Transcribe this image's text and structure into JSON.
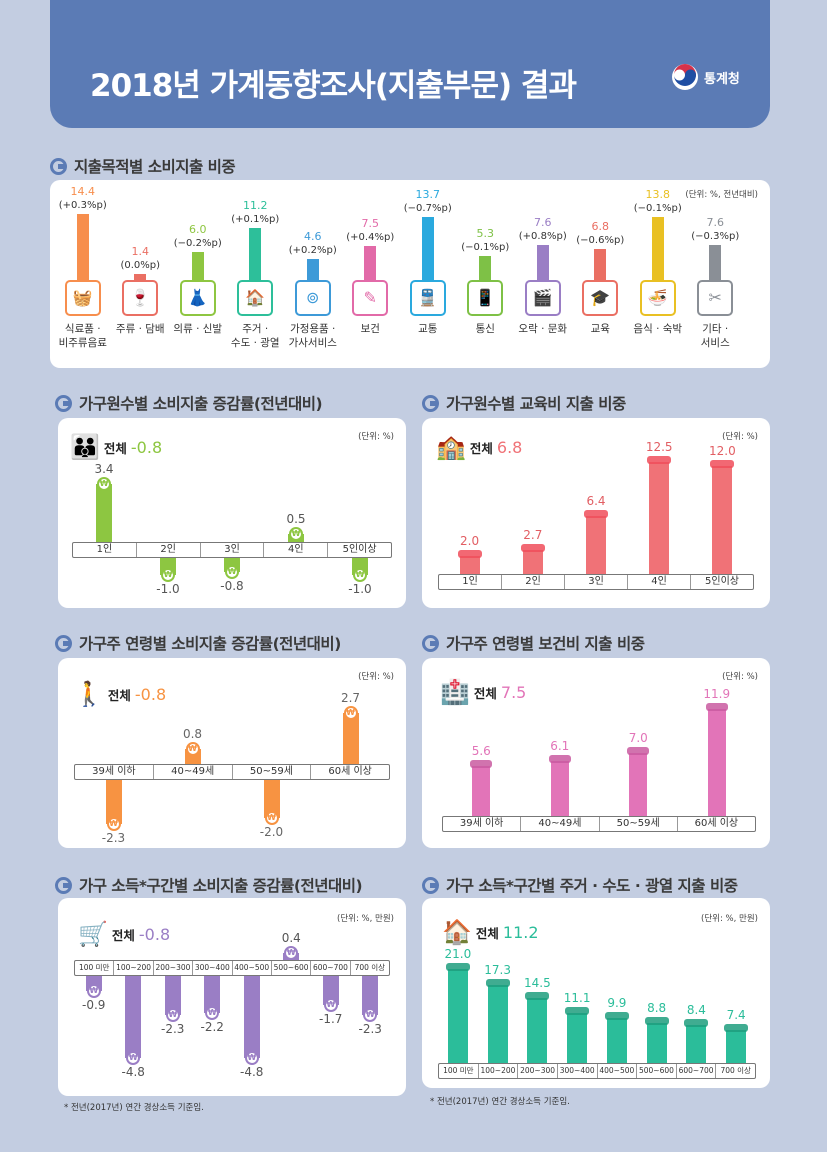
{
  "header": {
    "title": "2018년 가계동향조사(지출부문) 결과",
    "agency": "통계청"
  },
  "colors": {
    "banner": "#5b7bb5",
    "green": "#8dc641",
    "red": "#f07277",
    "orange": "#f79342",
    "pink": "#e274b8",
    "purple": "#9a7ec5",
    "teal": "#2bbd9a"
  },
  "section1": {
    "title": "지출목적별 소비지출 비중",
    "unit": "(단위: %, 전년대비)",
    "chart_data": {
      "type": "bar",
      "title": "지출목적별 소비지출 비중",
      "categories": [
        {
          "line1": "식료품 ·",
          "line2": "비주류음료",
          "icon": "grocery-basket-icon",
          "glyph": "🧺",
          "color": "#f78e4d"
        },
        {
          "line1": "주류 · 담배",
          "line2": "",
          "icon": "bottle-icon",
          "glyph": "🍷",
          "color": "#ea6f63"
        },
        {
          "line1": "의류 · 신발",
          "line2": "",
          "icon": "dress-icon",
          "glyph": "👗",
          "color": "#8ec641"
        },
        {
          "line1": "주거 ·",
          "line2": "수도 · 광열",
          "icon": "house-icon",
          "glyph": "🏠",
          "color": "#2dbf9a"
        },
        {
          "line1": "가정용품 ·",
          "line2": "가사서비스",
          "icon": "washing-machine-icon",
          "glyph": "⊚",
          "color": "#3d9ad8"
        },
        {
          "line1": "보건",
          "line2": "",
          "icon": "medical-chart-icon",
          "glyph": "✎",
          "color": "#e26aa8"
        },
        {
          "line1": "교통",
          "line2": "",
          "icon": "train-icon",
          "glyph": "🚆",
          "color": "#2aa9de"
        },
        {
          "line1": "통신",
          "line2": "",
          "icon": "phone-icon",
          "glyph": "📱",
          "color": "#7ec146"
        },
        {
          "line1": "오락 · 문화",
          "line2": "",
          "icon": "popcorn-icon",
          "glyph": "🎬",
          "color": "#9a7ec5"
        },
        {
          "line1": "교육",
          "line2": "",
          "icon": "graduation-cap-icon",
          "glyph": "🎓",
          "color": "#ea6f63"
        },
        {
          "line1": "음식 · 숙박",
          "line2": "",
          "icon": "noodle-bowl-icon",
          "glyph": "🍜",
          "color": "#e9c023"
        },
        {
          "line1": "기타 ·",
          "line2": "서비스",
          "icon": "scissors-icon",
          "glyph": "✂",
          "color": "#8a8f96"
        }
      ],
      "values": [
        14.4,
        1.4,
        6.0,
        11.2,
        4.6,
        7.5,
        13.7,
        5.3,
        7.6,
        6.8,
        13.8,
        7.6
      ],
      "value_labels": [
        "14.4",
        "1.4",
        "6.0",
        "11.2",
        "4.6",
        "7.5",
        "13.7",
        "5.3",
        "7.6",
        "6.8",
        "13.8",
        "7.6"
      ],
      "changes": [
        "(+0.3%p)",
        "(0.0%p)",
        "(−0.2%p)",
        "(+0.1%p)",
        "(+0.2%p)",
        "(+0.4%p)",
        "(−0.7%p)",
        "(−0.1%p)",
        "(+0.8%p)",
        "(−0.6%p)",
        "(−0.1%p)",
        "(−0.3%p)"
      ]
    }
  },
  "section2": {
    "title": "가구원수별 소비지출 증감률(전년대비)",
    "unit": "(단위: %)",
    "total_label": "전체",
    "total_value": "-0.8",
    "chart_data": {
      "type": "bar",
      "title": "가구원수별 소비지출 증감률(전년대비)",
      "categories": [
        "1인",
        "2인",
        "3인",
        "4인",
        "5인이상"
      ],
      "values": [
        3.4,
        -1.0,
        -0.8,
        0.5,
        -1.0
      ],
      "value_labels": [
        "3.4",
        "-1.0",
        "-0.8",
        "0.5",
        "-1.0"
      ]
    }
  },
  "section3": {
    "title": "가구원수별 교육비 지출 비중",
    "unit": "(단위: %)",
    "total_label": "전체",
    "total_value": "6.8",
    "chart_data": {
      "type": "bar",
      "title": "가구원수별 교육비 지출 비중",
      "categories": [
        "1인",
        "2인",
        "3인",
        "4인",
        "5인이상"
      ],
      "values": [
        2.0,
        2.7,
        6.4,
        12.5,
        12.0
      ],
      "value_labels": [
        "2.0",
        "2.7",
        "6.4",
        "12.5",
        "12.0"
      ]
    }
  },
  "section4": {
    "title": "가구주 연령별 소비지출 증감률(전년대비)",
    "unit": "(단위: %)",
    "total_label": "전체",
    "total_value": "-0.8",
    "chart_data": {
      "type": "bar",
      "title": "가구주 연령별 소비지출 증감률(전년대비)",
      "categories": [
        "39세 이하",
        "40~49세",
        "50~59세",
        "60세 이상"
      ],
      "values": [
        -2.3,
        0.8,
        -2.0,
        2.7
      ],
      "value_labels": [
        "-2.3",
        "0.8",
        "-2.0",
        "2.7"
      ]
    }
  },
  "section5": {
    "title": "가구주 연령별 보건비 지출 비중",
    "unit": "(단위: %)",
    "total_label": "전체",
    "total_value": "7.5",
    "chart_data": {
      "type": "bar",
      "title": "가구주 연령별 보건비 지출 비중",
      "categories": [
        "39세 이하",
        "40~49세",
        "50~59세",
        "60세 이상"
      ],
      "values": [
        5.6,
        6.1,
        7.0,
        11.9
      ],
      "value_labels": [
        "5.6",
        "6.1",
        "7.0",
        "11.9"
      ]
    }
  },
  "section6": {
    "title": "가구 소득*구간별 소비지출 증감률(전년대비)",
    "unit": "(단위: %, 만원)",
    "total_label": "전체",
    "total_value": "-0.8",
    "note": "* 전년(2017년) 연간 경상소득 기준임.",
    "chart_data": {
      "type": "bar",
      "title": "가구 소득*구간별 소비지출 증감률(전년대비)",
      "categories": [
        "100 미만",
        "100~200",
        "200~300",
        "300~400",
        "400~500",
        "500~600",
        "600~700",
        "700 이상"
      ],
      "values": [
        -0.9,
        -4.8,
        -2.3,
        -2.2,
        -4.8,
        0.4,
        -1.7,
        -2.3
      ],
      "value_labels": [
        "-0.9",
        "-4.8",
        "-2.3",
        "-2.2",
        "-4.8",
        "0.4",
        "-1.7",
        "-2.3"
      ]
    }
  },
  "section7": {
    "title": "가구 소득*구간별 주거 · 수도 · 광열 지출 비중",
    "unit": "(단위: %, 만원)",
    "total_label": "전체",
    "total_value": "11.2",
    "note": "* 전년(2017년) 연간 경상소득 기준임.",
    "chart_data": {
      "type": "bar",
      "title": "가구 소득*구간별 주거 · 수도 · 광열 지출 비중",
      "categories": [
        "100 미만",
        "100~200",
        "200~300",
        "300~400",
        "400~500",
        "500~600",
        "600~700",
        "700 이상"
      ],
      "values": [
        21.0,
        17.3,
        14.5,
        11.1,
        9.9,
        8.8,
        8.4,
        7.4
      ],
      "value_labels": [
        "21.0",
        "17.3",
        "14.5",
        "11.1",
        "9.9",
        "8.8",
        "8.4",
        "7.4"
      ]
    }
  }
}
